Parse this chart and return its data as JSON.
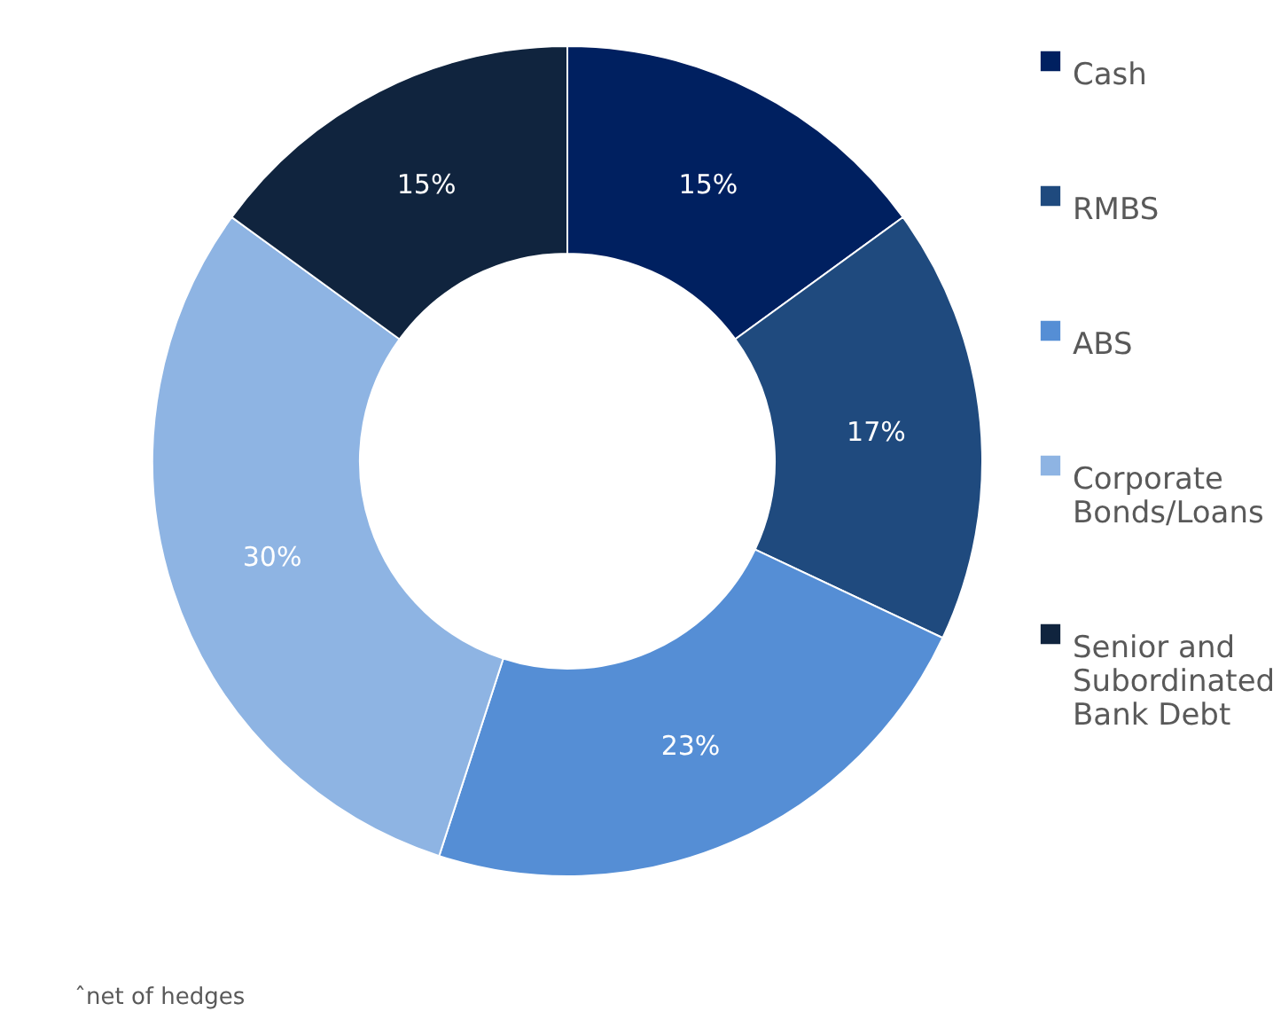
{
  "chart_data": {
    "type": "donut",
    "categories": [
      "Cash",
      "RMBS",
      "ABS",
      "Corporate Bonds/Loans",
      "Senior and Subordinated Bank Debt"
    ],
    "values": [
      15,
      17,
      23,
      30,
      15
    ],
    "colors": [
      "#002060",
      "#1f4a7e",
      "#558ed5",
      "#8eb4e3",
      "#10243e"
    ],
    "value_labels": [
      "15%",
      "17%",
      "23%",
      "30%",
      "15%"
    ],
    "legend": "right",
    "annotations": [
      "ˆnet of hedges"
    ]
  }
}
